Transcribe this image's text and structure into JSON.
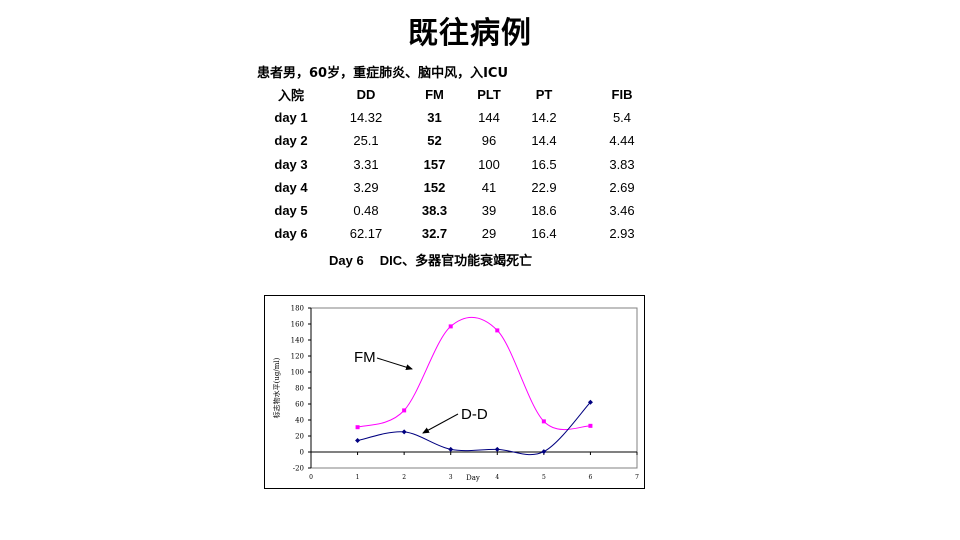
{
  "title": "既往病例",
  "patient_info": "患者男，60岁，重症肺炎、脑中风，入ICU",
  "table": {
    "headers": [
      "入院",
      "DD",
      "FM",
      "PLT",
      "PT",
      "FIB"
    ],
    "rows": [
      [
        "day 1",
        "14.32",
        "31",
        "144",
        "14.2",
        "5.4"
      ],
      [
        "day 2",
        "25.1",
        "52",
        "96",
        "14.4",
        "4.44"
      ],
      [
        "day 3",
        "3.31",
        "157",
        "100",
        "16.5",
        "3.83"
      ],
      [
        "day 4",
        "3.29",
        "152",
        "41",
        "22.9",
        "2.69"
      ],
      [
        "day 5",
        "0.48",
        "38.3",
        "39",
        "18.6",
        "3.46"
      ],
      [
        "day 6",
        "62.17",
        "32.7",
        "29",
        "16.4",
        "2.93"
      ]
    ]
  },
  "outcome_day": "Day 6",
  "outcome_text": "DIC、多器官功能衰竭死亡",
  "chart_data": {
    "type": "line",
    "xlabel": "Day",
    "ylabel": "标志物水平(ug/ml)",
    "xlim": [
      0,
      7
    ],
    "ylim": [
      -20,
      180
    ],
    "xticks": [
      "0",
      "1",
      "2",
      "3",
      "4",
      "5",
      "6",
      "7"
    ],
    "yticks": [
      "-20",
      "0",
      "20",
      "40",
      "60",
      "80",
      "100",
      "120",
      "140",
      "160",
      "180"
    ],
    "x": [
      1,
      2,
      3,
      4,
      5,
      6
    ],
    "series": [
      {
        "name": "FM",
        "values": [
          31,
          52,
          157,
          152,
          38.3,
          32.7
        ],
        "color": "#ff00ff",
        "marker": "square"
      },
      {
        "name": "D-D",
        "values": [
          14.32,
          25.1,
          3.31,
          3.29,
          0.48,
          62.17
        ],
        "color": "#000080",
        "marker": "diamond"
      }
    ],
    "annotations": [
      "FM",
      "D-D"
    ],
    "grid": false,
    "legend": "none"
  }
}
